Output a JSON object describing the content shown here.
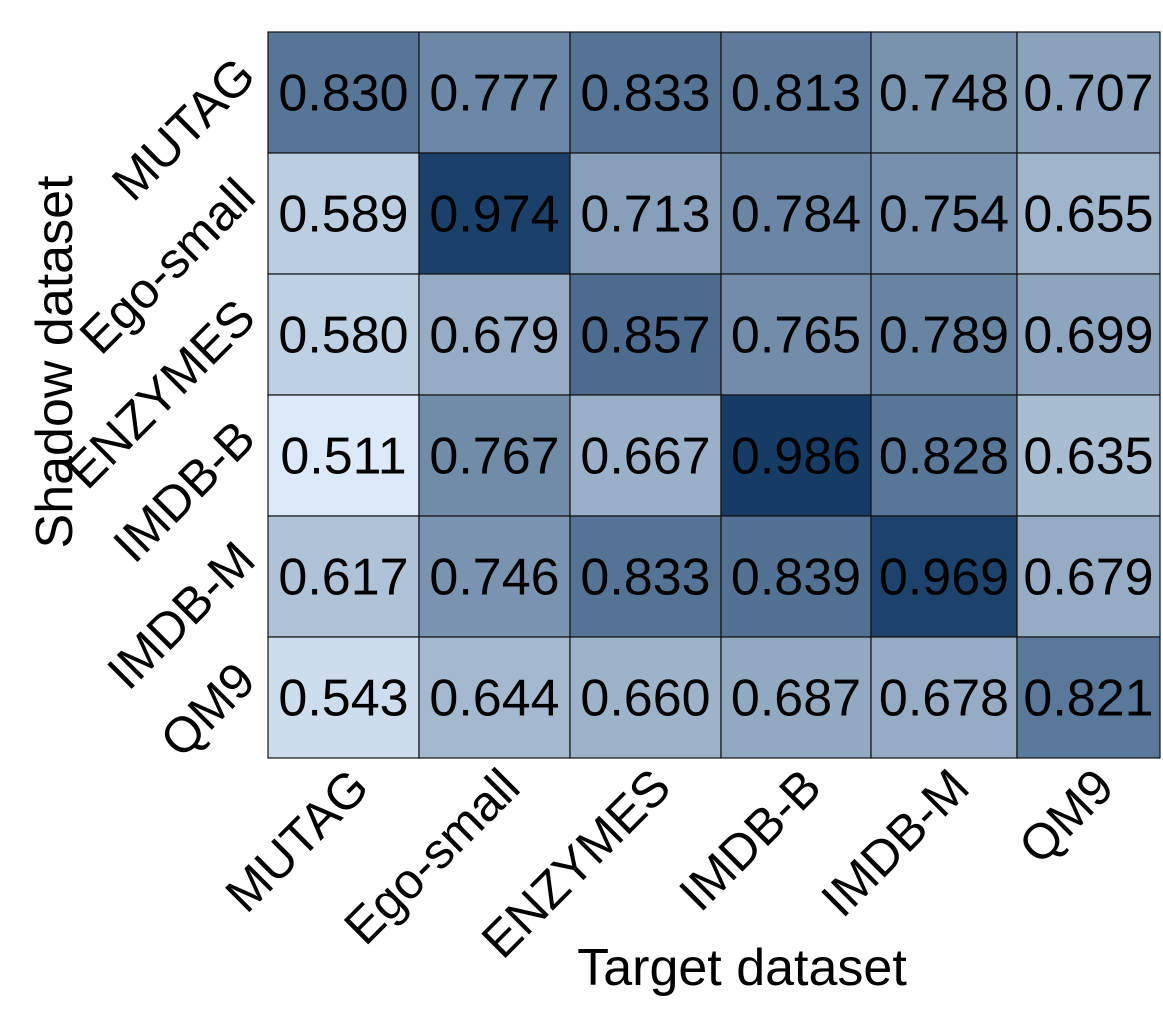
{
  "chart_data": {
    "type": "heatmap",
    "xlabel": "Target dataset",
    "ylabel": "Shadow dataset",
    "x_categories": [
      "MUTAG",
      "Ego-small",
      "ENZYMES",
      "IMDB-B",
      "IMDB-M",
      "QM9"
    ],
    "y_categories": [
      "MUTAG",
      "Ego-small",
      "ENZYMES",
      "IMDB-B",
      "IMDB-M",
      "QM9"
    ],
    "values": [
      [
        0.83,
        0.777,
        0.833,
        0.813,
        0.748,
        0.707
      ],
      [
        0.589,
        0.974,
        0.713,
        0.784,
        0.754,
        0.655
      ],
      [
        0.58,
        0.679,
        0.857,
        0.765,
        0.789,
        0.699
      ],
      [
        0.511,
        0.767,
        0.667,
        0.986,
        0.828,
        0.635
      ],
      [
        0.617,
        0.746,
        0.833,
        0.839,
        0.969,
        0.679
      ],
      [
        0.543,
        0.644,
        0.66,
        0.687,
        0.678,
        0.821
      ]
    ],
    "value_labels": [
      [
        "0.830",
        "0.777",
        "0.833",
        "0.813",
        "0.748",
        "0.707"
      ],
      [
        "0.589",
        "0.974",
        "0.713",
        "0.784",
        "0.754",
        "0.655"
      ],
      [
        "0.580",
        "0.679",
        "0.857",
        "0.765",
        "0.789",
        "0.699"
      ],
      [
        "0.511",
        "0.767",
        "0.667",
        "0.986",
        "0.828",
        "0.635"
      ],
      [
        "0.617",
        "0.746",
        "0.833",
        "0.839",
        "0.969",
        "0.679"
      ],
      [
        "0.543",
        "0.644",
        "0.660",
        "0.687",
        "0.678",
        "0.821"
      ]
    ],
    "color_low": "#dbe9f8",
    "color_high": "#163c66",
    "grid_color": "#111111",
    "legend": "none"
  }
}
